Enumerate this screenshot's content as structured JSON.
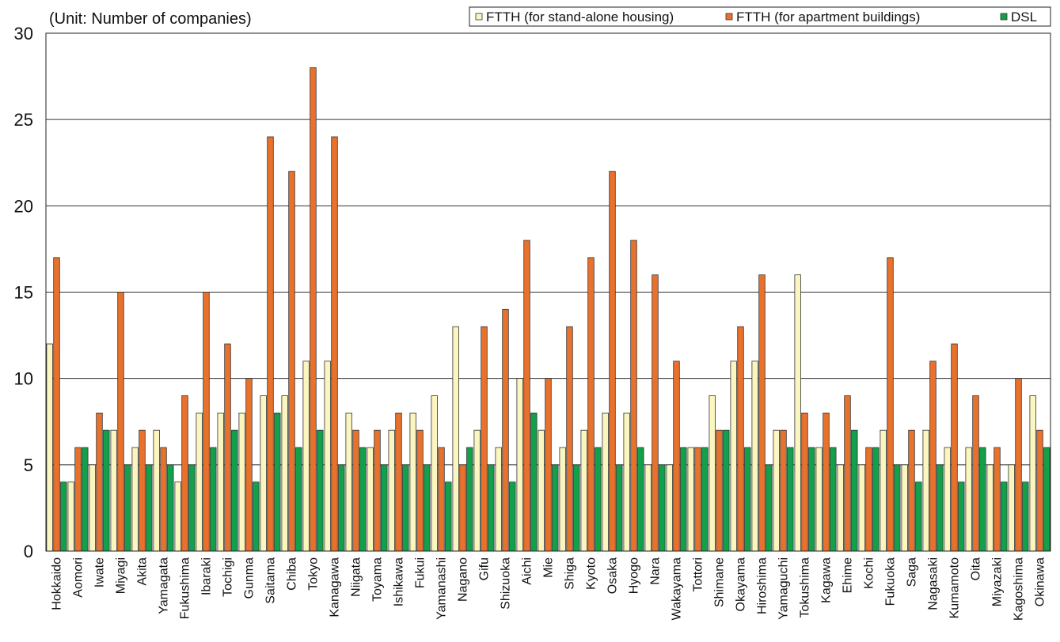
{
  "chart_data": {
    "type": "bar",
    "unit_label": "(Unit: Number of companies)",
    "title": "",
    "xlabel": "",
    "ylabel": "",
    "ylim": [
      0,
      30
    ],
    "yticks": [
      0,
      5,
      10,
      15,
      20,
      25,
      30
    ],
    "grid": true,
    "legend_position": "top-right",
    "categories": [
      "Hokkaido",
      "Aomori",
      "Iwate",
      "Miyagi",
      "Akita",
      "Yamagata",
      "Fukushima",
      "Ibaraki",
      "Tochigi",
      "Gunma",
      "Saitama",
      "Chiba",
      "Tokyo",
      "Kanagawa",
      "Niigata",
      "Toyama",
      "Ishikawa",
      "Fukui",
      "Yamanashi",
      "Nagano",
      "Gifu",
      "Shizuoka",
      "Aichi",
      "Mie",
      "Shiga",
      "Kyoto",
      "Osaka",
      "Hyogo",
      "Nara",
      "Wakayama",
      "Tottori",
      "Shimane",
      "Okayama",
      "Hiroshima",
      "Yamaguchi",
      "Tokushima",
      "Kagawa",
      "Ehime",
      "Kochi",
      "Fukuoka",
      "Saga",
      "Nagasaki",
      "Kumamoto",
      "Oita",
      "Miyazaki",
      "Kagoshima",
      "Okinawa"
    ],
    "series": [
      {
        "name": "FTTH (for stand-alone housing)",
        "color": "#fbf5bf",
        "values": [
          12,
          4,
          5,
          7,
          6,
          7,
          4,
          8,
          8,
          8,
          9,
          9,
          11,
          11,
          8,
          6,
          7,
          8,
          9,
          13,
          7,
          6,
          10,
          7,
          6,
          7,
          8,
          8,
          5,
          5,
          6,
          9,
          11,
          11,
          7,
          16,
          6,
          5,
          5,
          7,
          5,
          7,
          6,
          6,
          5,
          5,
          9
        ]
      },
      {
        "name": "FTTH (for apartment buildings)",
        "color": "#e8712c",
        "values": [
          17,
          6,
          8,
          15,
          7,
          6,
          9,
          15,
          12,
          10,
          24,
          22,
          28,
          24,
          7,
          7,
          8,
          7,
          6,
          5,
          13,
          14,
          18,
          10,
          13,
          17,
          22,
          18,
          16,
          11,
          6,
          7,
          13,
          16,
          7,
          8,
          8,
          9,
          6,
          17,
          7,
          11,
          12,
          9,
          6,
          10,
          7
        ]
      },
      {
        "name": "DSL",
        "color": "#12a04a",
        "values": [
          4,
          6,
          7,
          5,
          5,
          5,
          5,
          6,
          7,
          4,
          8,
          6,
          7,
          5,
          6,
          5,
          5,
          5,
          4,
          6,
          5,
          4,
          8,
          5,
          5,
          6,
          5,
          6,
          5,
          6,
          6,
          7,
          6,
          5,
          6,
          6,
          6,
          7,
          6,
          5,
          4,
          5,
          4,
          6,
          4,
          4,
          6
        ]
      }
    ]
  }
}
